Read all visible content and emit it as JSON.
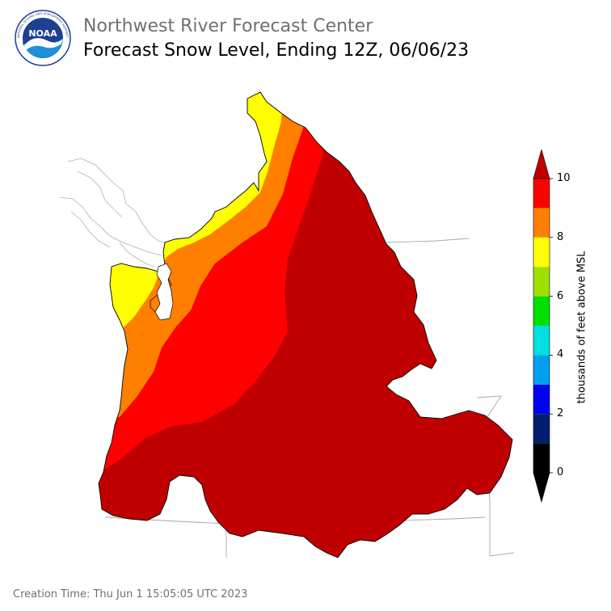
{
  "header": {
    "org_title": "Northwest River Forecast Center",
    "map_title": "Forecast Snow Level, Ending 12Z, 06/06/23"
  },
  "logo": {
    "text": "NOAA",
    "ring_text": "NATIONAL OCEANIC AND ATMOSPHERIC ADMINISTRATION · U.S. DEPARTMENT OF COMMERCE"
  },
  "legend": {
    "unit_label": "thousands of feet above MSL",
    "tick_labels": [
      "0",
      "2",
      "4",
      "6",
      "8",
      "10"
    ],
    "bins": [
      {
        "from": 0,
        "to": 1,
        "color": "#000000"
      },
      {
        "from": 1,
        "to": 2,
        "color": "#00206e"
      },
      {
        "from": 2,
        "to": 3,
        "color": "#0000f5"
      },
      {
        "from": 3,
        "to": 4,
        "color": "#00a0f0"
      },
      {
        "from": 4,
        "to": 5,
        "color": "#00e0e0"
      },
      {
        "from": 5,
        "to": 6,
        "color": "#00e000"
      },
      {
        "from": 6,
        "to": 7,
        "color": "#a0e000"
      },
      {
        "from": 7,
        "to": 8,
        "color": "#ffff00"
      },
      {
        "from": 8,
        "to": 9,
        "color": "#ff8000"
      },
      {
        "from": 9,
        "to": 10,
        "color": "#ff0000"
      }
    ],
    "under_color": "#000000",
    "over_color": "#c00000"
  },
  "map": {
    "zones": [
      {
        "name": "above 10",
        "color": "#c00000"
      },
      {
        "name": "9-10",
        "color": "#ff0000"
      },
      {
        "name": "8-9",
        "color": "#ff8000"
      },
      {
        "name": "7-8",
        "color": "#ffff00"
      }
    ]
  },
  "footer": {
    "creation_time": "Creation Time: Thu Jun 1 15:05:05 UTC 2023"
  }
}
